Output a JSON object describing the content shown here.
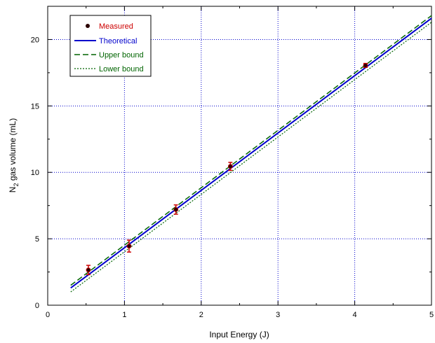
{
  "chart_data": {
    "type": "scatter",
    "xlabel": "Input Energy (J)",
    "ylabel_main": "N",
    "ylabel_sub": "2",
    "ylabel_rest": " gas volume (mL)",
    "xlim": [
      0,
      5
    ],
    "ylim": [
      0,
      22.5
    ],
    "xticks": [
      0,
      1,
      2,
      3,
      4,
      5
    ],
    "yticks": [
      0,
      5,
      10,
      15,
      20
    ],
    "grid": true,
    "legend_position": "top-left",
    "measured": {
      "name": "Measured",
      "color": "#cc0000",
      "marker_color": "#2a0000",
      "x": [
        0.53,
        1.06,
        1.67,
        2.38,
        4.14
      ],
      "y": [
        2.65,
        4.45,
        7.2,
        10.45,
        18.05
      ],
      "err": [
        0.35,
        0.45,
        0.35,
        0.3,
        0.15
      ]
    },
    "theoretical": {
      "name": "Theoretical",
      "color": "#0000cc",
      "x": [
        0.3,
        5.0
      ],
      "y": [
        1.3,
        21.6
      ]
    },
    "upper_bound": {
      "name": "Upper bound",
      "color": "#006400",
      "x": [
        0.3,
        5.0
      ],
      "y": [
        1.5,
        21.8
      ]
    },
    "lower_bound": {
      "name": "Lower bound",
      "color": "#006400",
      "x": [
        0.3,
        5.0
      ],
      "y": [
        1.0,
        21.3
      ]
    }
  }
}
